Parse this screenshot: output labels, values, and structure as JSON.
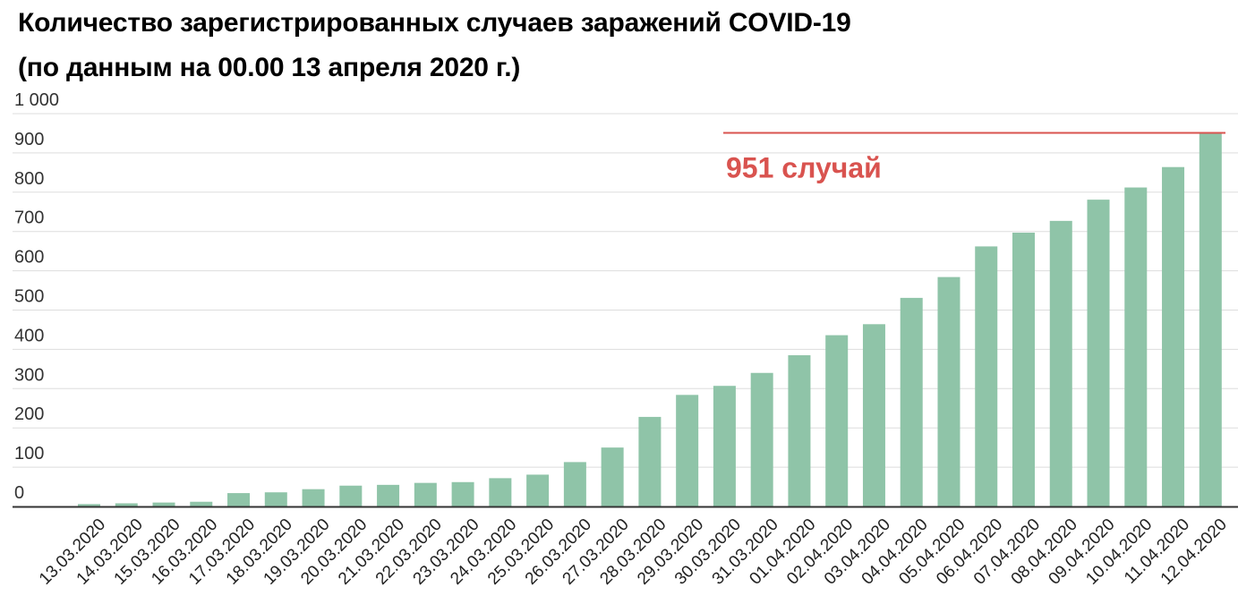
{
  "title_line1": "Количество зарегистрированных случаев заражений COVID-19",
  "title_line2": "(по данным на 00.00 13 апреля 2020 г.)",
  "colors": {
    "bar": "#8fc4a8",
    "annotation": "#d9534f",
    "grid": "#dddddd",
    "axis": "#333333"
  },
  "chart_data": {
    "type": "bar",
    "title": "Количество зарегистрированных случаев заражений COVID-19 (по данным на 00.00 13 апреля 2020 г.)",
    "xlabel": "",
    "ylabel": "",
    "ylim": [
      0,
      1000
    ],
    "grid": true,
    "y_ticks": [
      {
        "value": 0,
        "label": "0"
      },
      {
        "value": 100,
        "label": "100"
      },
      {
        "value": 200,
        "label": "200"
      },
      {
        "value": 300,
        "label": "300"
      },
      {
        "value": 400,
        "label": "400"
      },
      {
        "value": 500,
        "label": "500"
      },
      {
        "value": 600,
        "label": "600"
      },
      {
        "value": 700,
        "label": "700"
      },
      {
        "value": 800,
        "label": "800"
      },
      {
        "value": 900,
        "label": "900"
      },
      {
        "value": 1000,
        "label": "1 000"
      }
    ],
    "categories": [
      "13.03.2020",
      "14.03.2020",
      "15.03.2020",
      "16.03.2020",
      "17.03.2020",
      "18.03.2020",
      "19.03.2020",
      "20.03.2020",
      "21.03.2020",
      "22.03.2020",
      "23.03.2020",
      "24.03.2020",
      "25.03.2020",
      "26.03.2020",
      "27.03.2020",
      "28.03.2020",
      "29.03.2020",
      "30.03.2020",
      "31.03.2020",
      "01.04.2020",
      "02.04.2020",
      "03.04.2020",
      "04.04.2020",
      "05.04.2020",
      "06.04.2020",
      "07.04.2020",
      "08.04.2020",
      "09.04.2020",
      "10.04.2020",
      "11.04.2020",
      "12.04.2020"
    ],
    "values": [
      6,
      8,
      10,
      12,
      34,
      36,
      44,
      53,
      55,
      60,
      62,
      72,
      81,
      113,
      150,
      228,
      284,
      307,
      340,
      385,
      436,
      464,
      531,
      584,
      662,
      697,
      727,
      781,
      812,
      864,
      951
    ],
    "annotation": {
      "text": "951 случай",
      "value": 951
    }
  }
}
